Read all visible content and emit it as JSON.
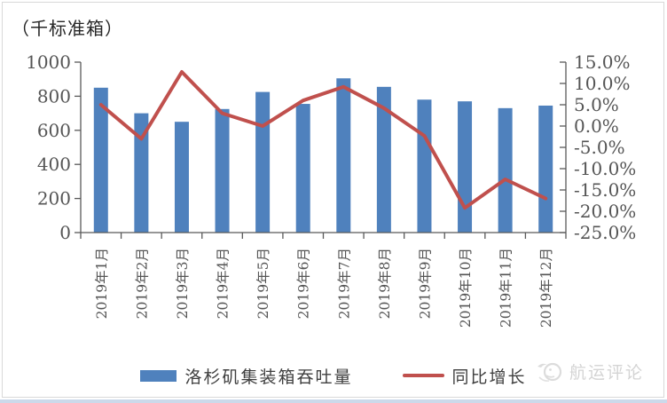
{
  "chart_data": {
    "type": "bar",
    "combo": "bar+line",
    "title": "（千标准箱）",
    "categories": [
      "2019年1月",
      "2019年2月",
      "2019年3月",
      "2019年4月",
      "2019年5月",
      "2019年6月",
      "2019年7月",
      "2019年8月",
      "2019年9月",
      "2019年10月",
      "2019年11月",
      "2019年12月"
    ],
    "series": [
      {
        "name": "洛杉矶集装箱吞吐量",
        "type": "bar",
        "axis": "left",
        "color": "#4f81bd",
        "values": [
          850,
          700,
          650,
          725,
          825,
          755,
          905,
          855,
          780,
          770,
          730,
          745
        ]
      },
      {
        "name": "同比增长",
        "type": "line",
        "axis": "right",
        "color": "#c0504d",
        "values": [
          5.0,
          -3.0,
          12.7,
          3.0,
          0.0,
          6.0,
          9.2,
          4.2,
          -2.3,
          -19.2,
          -12.5,
          -17.0
        ]
      }
    ],
    "left_axis": {
      "label": "（千标准箱）",
      "min": 0,
      "max": 1000,
      "step": 200,
      "tick_labels": [
        "1000",
        "800",
        "600",
        "400",
        "200",
        "0"
      ]
    },
    "right_axis": {
      "unit": "%",
      "min": -25,
      "max": 15,
      "step": 5,
      "tick_labels": [
        "15.0%",
        "10.0%",
        "5.0%",
        "0.0%",
        "-5.0%",
        "-10.0%",
        "-15.0%",
        "-20.0%",
        "-25.0%"
      ]
    },
    "grid": false,
    "legend_position": "bottom",
    "colors": {
      "bar": "#4f81bd",
      "line": "#c0504d",
      "axis": "#595959",
      "tick_text": "#555555",
      "title_text": "#262626"
    }
  },
  "legend": [
    {
      "label": "洛杉矶集装箱吞吐量",
      "swatch": "bar-swatch",
      "color": "#4f81bd"
    },
    {
      "label": "同比增长",
      "swatch": "line-swatch",
      "color": "#c0504d"
    }
  ],
  "watermark": {
    "text": "航运评论",
    "icon": "seagull-logo-icon",
    "color": "#d4d4d4"
  }
}
